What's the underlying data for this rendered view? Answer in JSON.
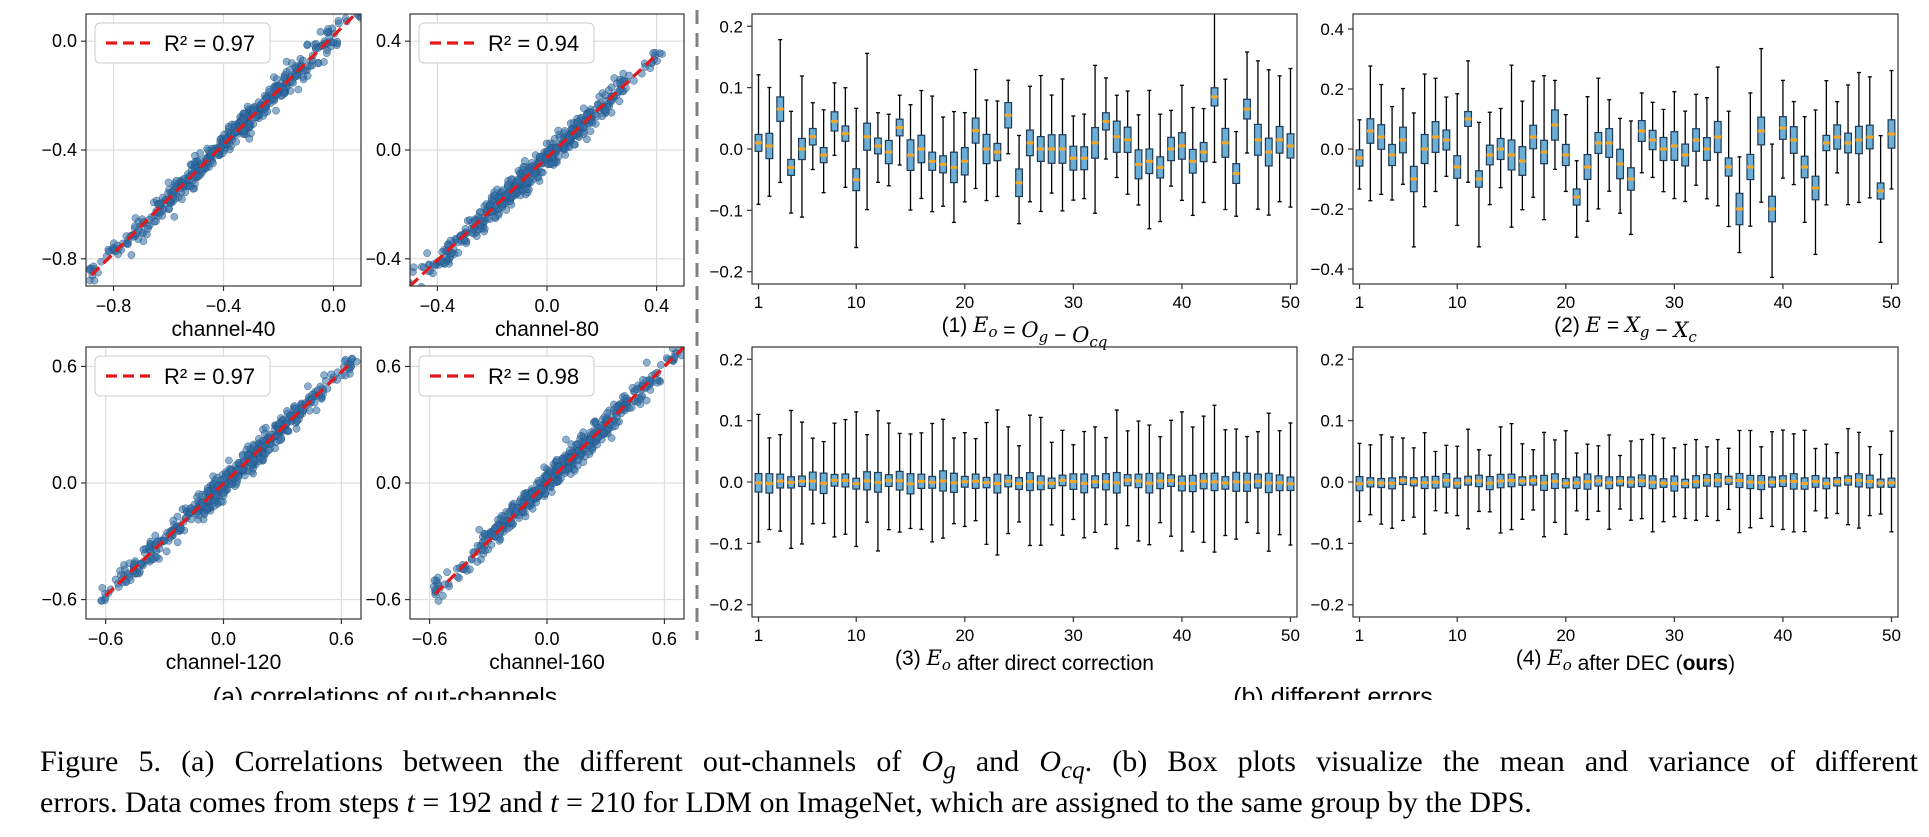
{
  "colors": {
    "scatter_point": "#2f6ea6",
    "fit_line": "#e31a1c",
    "box_fill": "#6baed6",
    "box_edge": "#1f3b57",
    "median": "#f5a623",
    "grid": "#dddddd",
    "divider": "#808080"
  },
  "scatter_panels": [
    {
      "xlabel": "channel-40",
      "legend": "R² = 0.97",
      "xticks": [
        "−0.8",
        "−0.4",
        "0.0"
      ],
      "yticks": [
        "−0.8",
        "−0.4",
        "0.0"
      ]
    },
    {
      "xlabel": "channel-80",
      "legend": "R² = 0.94",
      "xticks": [
        "−0.4",
        "0.0",
        "0.4"
      ],
      "yticks": [
        "−0.4",
        "0.0",
        "0.4"
      ]
    },
    {
      "xlabel": "channel-120",
      "legend": "R² = 0.97",
      "xticks": [
        "−0.6",
        "0.0",
        "0.6"
      ],
      "yticks": [
        "−0.6",
        "0.0",
        "0.6"
      ]
    },
    {
      "xlabel": "channel-160",
      "legend": "R² = 0.98",
      "xticks": [
        "−0.6",
        "0.0",
        "0.6"
      ],
      "yticks": [
        "−0.6",
        "0.0",
        "0.6"
      ]
    }
  ],
  "box_panels": [
    {
      "label": "(1) E_o = O_g − O_cq",
      "yticks": [
        "−0.2",
        "−0.1",
        "0.0",
        "0.1",
        "0.2"
      ],
      "xticks": [
        "1",
        "10",
        "20",
        "30",
        "40",
        "50"
      ]
    },
    {
      "label": "(2) E = X_g − X_c",
      "yticks": [
        "−0.4",
        "−0.2",
        "0.0",
        "0.2",
        "0.4"
      ],
      "xticks": [
        "1",
        "10",
        "20",
        "30",
        "40",
        "50"
      ]
    },
    {
      "label": "(3) E_o after direct correction",
      "yticks": [
        "−0.2",
        "−0.1",
        "0.0",
        "0.1",
        "0.2"
      ],
      "xticks": [
        "1",
        "10",
        "20",
        "30",
        "40",
        "50"
      ]
    },
    {
      "label": "(4) E_o after DEC (ours)",
      "yticks": [
        "−0.2",
        "−0.1",
        "0.0",
        "0.1",
        "0.2"
      ],
      "xticks": [
        "1",
        "10",
        "20",
        "30",
        "40",
        "50"
      ]
    }
  ],
  "group_labels": {
    "a": "(a) correlations of out-channels",
    "b": "(b) different errors"
  },
  "caption": {
    "line1": "Figure 5. (a) Correlations between the different out-channels of O_g and O_cq. (b) Box plots visualize the mean and variance of different",
    "line2": "errors. Data comes from steps t = 192 and t = 210 for LDM on ImageNet, which are assigned to the same group by the DPS."
  },
  "chart_data": [
    {
      "type": "scatter",
      "xlabel": "channel-40",
      "legend": [
        "R² = 0.97"
      ],
      "xlim": [
        -0.9,
        0.1
      ],
      "ylim": [
        -0.9,
        0.1
      ],
      "fit": {
        "x": [
          -0.88,
          0.1
        ],
        "y": [
          -0.86,
          0.12
        ]
      },
      "grid": true,
      "legend_position": "top-left"
    },
    {
      "type": "scatter",
      "xlabel": "channel-80",
      "legend": [
        "R² = 0.94"
      ],
      "xlim": [
        -0.5,
        0.5
      ],
      "ylim": [
        -0.5,
        0.5
      ],
      "fit": {
        "x": [
          -0.5,
          0.4
        ],
        "y": [
          -0.5,
          0.35
        ]
      },
      "grid": true,
      "legend_position": "top-left"
    },
    {
      "type": "scatter",
      "xlabel": "channel-120",
      "legend": [
        "R² = 0.97"
      ],
      "xlim": [
        -0.7,
        0.7
      ],
      "ylim": [
        -0.7,
        0.7
      ],
      "fit": {
        "x": [
          -0.6,
          0.65
        ],
        "y": [
          -0.58,
          0.62
        ]
      },
      "grid": true,
      "legend_position": "top-left"
    },
    {
      "type": "scatter",
      "xlabel": "channel-160",
      "legend": [
        "R² = 0.98"
      ],
      "xlim": [
        -0.7,
        0.7
      ],
      "ylim": [
        -0.7,
        0.7
      ],
      "fit": {
        "x": [
          -0.57,
          0.7
        ],
        "y": [
          -0.57,
          0.7
        ]
      },
      "grid": true,
      "legend_position": "top-left"
    },
    {
      "type": "box",
      "title": "(1) E_o = O_g − O_cq",
      "x": [
        1,
        50
      ],
      "ylim": [
        -0.22,
        0.22
      ],
      "medians": [
        0.01,
        0.005,
        0.065,
        -0.03,
        0.0,
        0.02,
        -0.01,
        0.045,
        0.025,
        -0.05,
        0.02,
        0.005,
        -0.005,
        0.035,
        -0.01,
        0.0,
        -0.02,
        -0.025,
        -0.03,
        -0.02,
        0.03,
        0.0,
        -0.005,
        0.055,
        -0.055,
        0.01,
        0.0,
        0.0,
        0.0,
        -0.015,
        -0.015,
        0.01,
        0.045,
        0.02,
        0.015,
        -0.025,
        -0.02,
        -0.03,
        0.0,
        0.005,
        -0.02,
        -0.005,
        0.085,
        0.01,
        -0.04,
        0.065,
        0.015,
        -0.005,
        0.015,
        0.005
      ]
    },
    {
      "type": "box",
      "title": "(2) E = X_g − X_c",
      "x": [
        1,
        50
      ],
      "ylim": [
        -0.45,
        0.45
      ],
      "medians": [
        -0.03,
        0.06,
        0.04,
        -0.02,
        0.03,
        -0.1,
        0.0,
        0.04,
        0.03,
        -0.06,
        0.1,
        -0.1,
        -0.02,
        0.0,
        -0.02,
        -0.04,
        0.04,
        -0.01,
        0.08,
        -0.02,
        -0.16,
        -0.06,
        0.02,
        0.02,
        -0.05,
        -0.1,
        0.06,
        0.03,
        0.0,
        0.01,
        -0.02,
        0.03,
        0.0,
        0.04,
        -0.06,
        -0.2,
        -0.06,
        0.06,
        -0.2,
        0.07,
        0.03,
        -0.06,
        -0.13,
        0.02,
        0.04,
        0.02,
        0.03,
        0.04,
        -0.14,
        0.05
      ]
    },
    {
      "type": "box",
      "title": "(3) E_o after direct correction",
      "x": [
        1,
        50
      ],
      "ylim": [
        -0.22,
        0.22
      ],
      "medians_approx": 0.0
    },
    {
      "type": "box",
      "title": "(4) E_o after DEC (ours)",
      "x": [
        1,
        50
      ],
      "ylim": [
        -0.22,
        0.22
      ],
      "medians_approx": 0.0
    }
  ]
}
